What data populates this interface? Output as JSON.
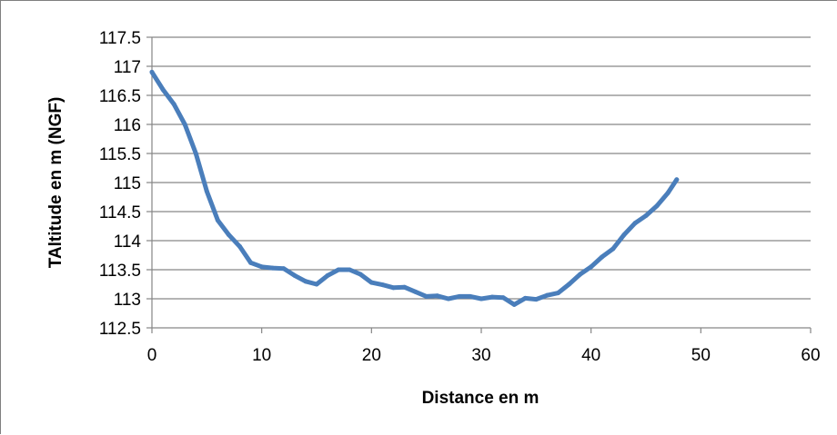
{
  "chart_data": {
    "type": "line",
    "title": "",
    "xlabel": "Distance en m",
    "ylabel": "TAltitude en m (NGF)",
    "xlim": [
      0,
      60
    ],
    "ylim": [
      112.5,
      117.5
    ],
    "x_ticks": [
      "0",
      "10",
      "20",
      "30",
      "40",
      "50",
      "60"
    ],
    "y_ticks": [
      "112.5",
      "113",
      "113.5",
      "114",
      "114.5",
      "115",
      "115.5",
      "116",
      "116.5",
      "117",
      "117.5"
    ],
    "grid": "horizontal",
    "legend": "none",
    "series": [
      {
        "color": "#4a7ebb",
        "points": [
          [
            0,
            116.9
          ],
          [
            1,
            116.6
          ],
          [
            2,
            116.35
          ],
          [
            3,
            116.0
          ],
          [
            4,
            115.5
          ],
          [
            5,
            114.85
          ],
          [
            6,
            114.35
          ],
          [
            7,
            114.1
          ],
          [
            8,
            113.9
          ],
          [
            9,
            113.62
          ],
          [
            10,
            113.55
          ],
          [
            11,
            113.53
          ],
          [
            12,
            113.52
          ],
          [
            13,
            113.4
          ],
          [
            14,
            113.3
          ],
          [
            15,
            113.25
          ],
          [
            16,
            113.4
          ],
          [
            17,
            113.5
          ],
          [
            18,
            113.5
          ],
          [
            19,
            113.42
          ],
          [
            20,
            113.28
          ],
          [
            21,
            113.24
          ],
          [
            22,
            113.19
          ],
          [
            23,
            113.2
          ],
          [
            24,
            113.12
          ],
          [
            25,
            113.04
          ],
          [
            26,
            113.05
          ],
          [
            27,
            113.0
          ],
          [
            28,
            113.04
          ],
          [
            29,
            113.04
          ],
          [
            30,
            113.0
          ],
          [
            31,
            113.03
          ],
          [
            32,
            113.02
          ],
          [
            33,
            112.9
          ],
          [
            34,
            113.01
          ],
          [
            35,
            112.99
          ],
          [
            36,
            113.06
          ],
          [
            37,
            113.1
          ],
          [
            38,
            113.25
          ],
          [
            39,
            113.42
          ],
          [
            40,
            113.55
          ],
          [
            41,
            113.72
          ],
          [
            42,
            113.86
          ],
          [
            43,
            114.1
          ],
          [
            44,
            114.3
          ],
          [
            45,
            114.43
          ],
          [
            46,
            114.6
          ],
          [
            47,
            114.82
          ],
          [
            47.8,
            115.05
          ]
        ]
      }
    ]
  }
}
